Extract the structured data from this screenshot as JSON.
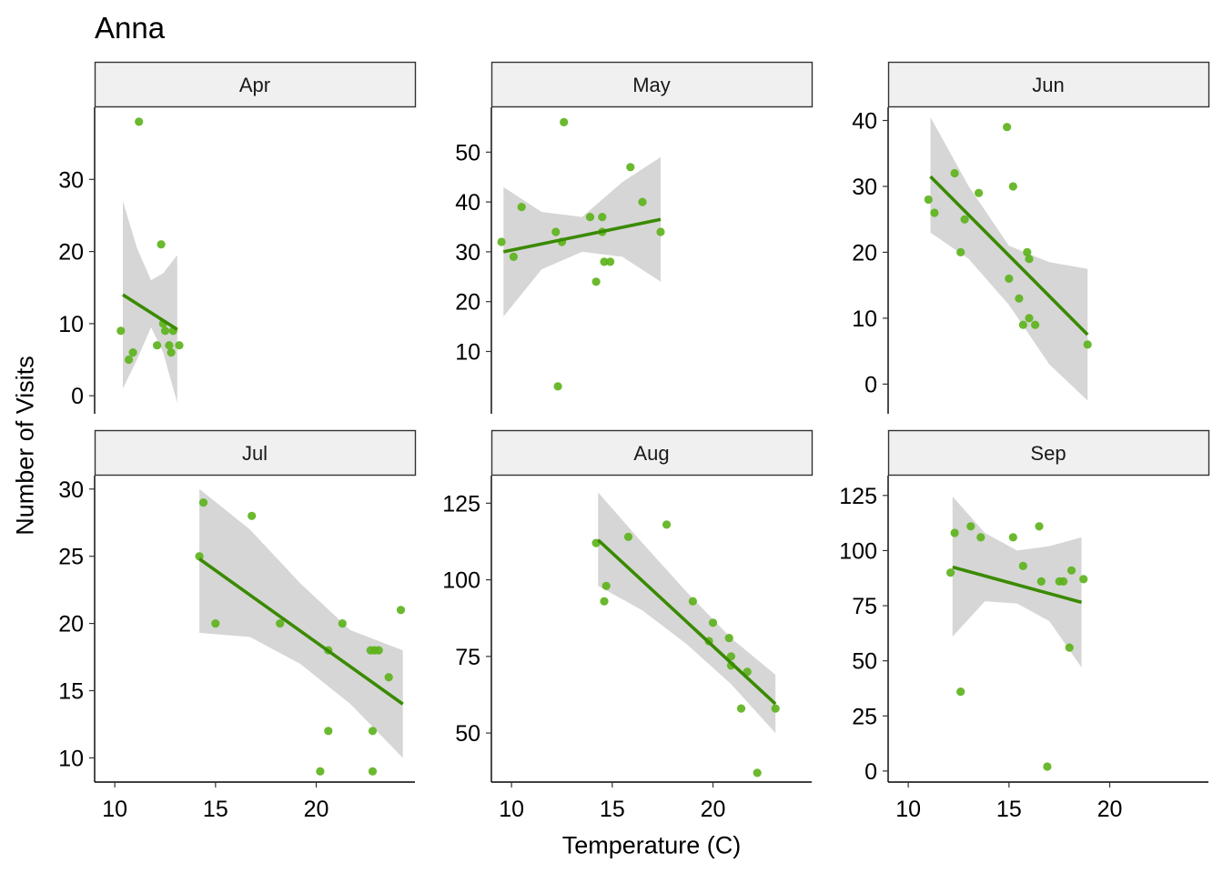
{
  "title": "Anna",
  "ylabel": "Number of Visits",
  "xlabel": "Temperature (C)",
  "colors": {
    "point": "#5db31c",
    "line": "#3a8a00",
    "band": "#d6d6d6",
    "strip": "#f0f0f0"
  },
  "chart_data": [
    {
      "type": "scatter",
      "panel": "Apr",
      "xlim": [
        9,
        24.9
      ],
      "ylim": [
        -2.5,
        40
      ],
      "xticks": [
        10,
        15,
        20
      ],
      "yticks": [
        0,
        10,
        20,
        30
      ],
      "show_x_axis": false,
      "points": [
        [
          10.3,
          9
        ],
        [
          10.7,
          5
        ],
        [
          10.9,
          6
        ],
        [
          11.2,
          38
        ],
        [
          12.1,
          7
        ],
        [
          12.3,
          21
        ],
        [
          12.4,
          10
        ],
        [
          12.5,
          9
        ],
        [
          12.7,
          7
        ],
        [
          12.8,
          6
        ],
        [
          12.9,
          9
        ],
        [
          13.2,
          7
        ]
      ],
      "fit": {
        "x": [
          10.4,
          13.1
        ],
        "y": [
          14,
          9.2
        ]
      },
      "band": {
        "x": [
          10.4,
          11.1,
          11.8,
          12.4,
          13.1
        ],
        "lower": [
          1,
          5,
          9.5,
          6,
          -1
        ],
        "upper": [
          27,
          20.5,
          16,
          17,
          19.5
        ]
      }
    },
    {
      "type": "scatter",
      "panel": "May",
      "xlim": [
        9,
        24.9
      ],
      "ylim": [
        -2.5,
        59
      ],
      "xticks": [
        10,
        15,
        20
      ],
      "yticks": [
        10,
        20,
        30,
        40,
        50
      ],
      "show_x_axis": false,
      "points": [
        [
          9.5,
          32
        ],
        [
          10.1,
          29
        ],
        [
          10.5,
          39
        ],
        [
          12.2,
          34
        ],
        [
          12.3,
          3
        ],
        [
          12.5,
          32
        ],
        [
          12.6,
          56
        ],
        [
          13.9,
          37
        ],
        [
          14.2,
          24
        ],
        [
          14.5,
          37
        ],
        [
          14.5,
          34
        ],
        [
          14.6,
          28
        ],
        [
          14.9,
          28
        ],
        [
          15.9,
          47
        ],
        [
          16.5,
          40
        ],
        [
          17.4,
          34
        ]
      ],
      "fit": {
        "x": [
          9.6,
          17.4
        ],
        "y": [
          30,
          36.5
        ]
      },
      "band": {
        "x": [
          9.6,
          11.5,
          13.5,
          15.5,
          17.4
        ],
        "lower": [
          17,
          26.5,
          30,
          29,
          24
        ],
        "upper": [
          43,
          38,
          37,
          44,
          49
        ]
      }
    },
    {
      "type": "scatter",
      "panel": "Jun",
      "xlim": [
        9,
        24.9
      ],
      "ylim": [
        -4.5,
        42
      ],
      "xticks": [
        10,
        15,
        20
      ],
      "yticks": [
        0,
        10,
        20,
        30,
        40
      ],
      "show_x_axis": false,
      "points": [
        [
          11.0,
          28
        ],
        [
          11.3,
          26
        ],
        [
          12.3,
          32
        ],
        [
          12.6,
          20
        ],
        [
          12.8,
          25
        ],
        [
          13.5,
          29
        ],
        [
          14.9,
          39
        ],
        [
          15.0,
          16
        ],
        [
          15.2,
          30
        ],
        [
          15.5,
          13
        ],
        [
          15.7,
          9
        ],
        [
          15.9,
          20
        ],
        [
          16.0,
          19
        ],
        [
          16.0,
          10
        ],
        [
          16.3,
          9
        ],
        [
          18.9,
          6
        ]
      ],
      "fit": {
        "x": [
          11.1,
          18.9
        ],
        "y": [
          31.5,
          7.5
        ]
      },
      "band": {
        "x": [
          11.1,
          13,
          15,
          17,
          18.9
        ],
        "lower": [
          23,
          19,
          12,
          3,
          -2.5
        ],
        "upper": [
          40.5,
          30,
          21,
          18.5,
          17.5
        ]
      }
    },
    {
      "type": "scatter",
      "panel": "Jul",
      "xlim": [
        9,
        24.9
      ],
      "ylim": [
        8.2,
        31
      ],
      "xticks": [
        10,
        15,
        20
      ],
      "yticks": [
        10,
        15,
        20,
        25,
        30
      ],
      "show_x_axis": true,
      "points": [
        [
          14.2,
          25
        ],
        [
          14.4,
          29
        ],
        [
          15.0,
          20
        ],
        [
          16.8,
          28
        ],
        [
          18.2,
          20
        ],
        [
          20.2,
          9
        ],
        [
          20.6,
          12
        ],
        [
          20.6,
          18
        ],
        [
          21.3,
          20
        ],
        [
          22.7,
          18
        ],
        [
          22.8,
          12
        ],
        [
          22.8,
          9
        ],
        [
          22.9,
          18
        ],
        [
          23.1,
          18
        ],
        [
          23.6,
          16
        ],
        [
          24.2,
          21
        ]
      ],
      "fit": {
        "x": [
          14.2,
          24.3
        ],
        "y": [
          24.8,
          14
        ]
      },
      "band": {
        "x": [
          14.2,
          16.7,
          19.2,
          21.7,
          24.3
        ],
        "lower": [
          19.3,
          19,
          17,
          14,
          10
        ],
        "upper": [
          30,
          27,
          23,
          19.5,
          18
        ]
      }
    },
    {
      "type": "scatter",
      "panel": "Aug",
      "xlim": [
        9,
        24.9
      ],
      "ylim": [
        34,
        134
      ],
      "xticks": [
        10,
        15,
        20
      ],
      "yticks": [
        50,
        75,
        100,
        125
      ],
      "show_x_axis": true,
      "points": [
        [
          14.2,
          112
        ],
        [
          14.6,
          93
        ],
        [
          14.7,
          98
        ],
        [
          15.8,
          114
        ],
        [
          17.7,
          118
        ],
        [
          19.0,
          93
        ],
        [
          19.8,
          80
        ],
        [
          20.0,
          86
        ],
        [
          20.8,
          81
        ],
        [
          20.9,
          75
        ],
        [
          20.9,
          72
        ],
        [
          21.4,
          58
        ],
        [
          21.7,
          70
        ],
        [
          22.2,
          37
        ],
        [
          23.1,
          58
        ]
      ],
      "fit": {
        "x": [
          14.3,
          23.1
        ],
        "y": [
          113,
          59.5
        ]
      },
      "band": {
        "x": [
          14.3,
          16.5,
          18.7,
          20.9,
          23.1
        ],
        "lower": [
          98,
          90,
          79,
          66,
          50
        ],
        "upper": [
          128.5,
          112,
          96,
          81,
          69
        ]
      }
    },
    {
      "type": "scatter",
      "panel": "Sep",
      "xlim": [
        9,
        24.9
      ],
      "ylim": [
        -5,
        134
      ],
      "xticks": [
        10,
        15,
        20
      ],
      "yticks": [
        0,
        25,
        50,
        75,
        100,
        125
      ],
      "show_x_axis": true,
      "points": [
        [
          12.1,
          90
        ],
        [
          12.3,
          108
        ],
        [
          12.6,
          36
        ],
        [
          13.1,
          111
        ],
        [
          13.6,
          106
        ],
        [
          15.2,
          106
        ],
        [
          15.7,
          93
        ],
        [
          16.5,
          111
        ],
        [
          16.6,
          86
        ],
        [
          16.9,
          2
        ],
        [
          17.5,
          86
        ],
        [
          17.7,
          86
        ],
        [
          18.0,
          56
        ],
        [
          18.1,
          91
        ],
        [
          18.7,
          87
        ]
      ],
      "fit": {
        "x": [
          12.2,
          18.6
        ],
        "y": [
          92.5,
          76.5
        ]
      },
      "band": {
        "x": [
          12.2,
          13.8,
          15.4,
          17,
          18.6
        ],
        "lower": [
          61,
          77,
          76,
          68,
          47
        ],
        "upper": [
          124.5,
          108,
          100,
          102,
          106
        ]
      }
    }
  ]
}
